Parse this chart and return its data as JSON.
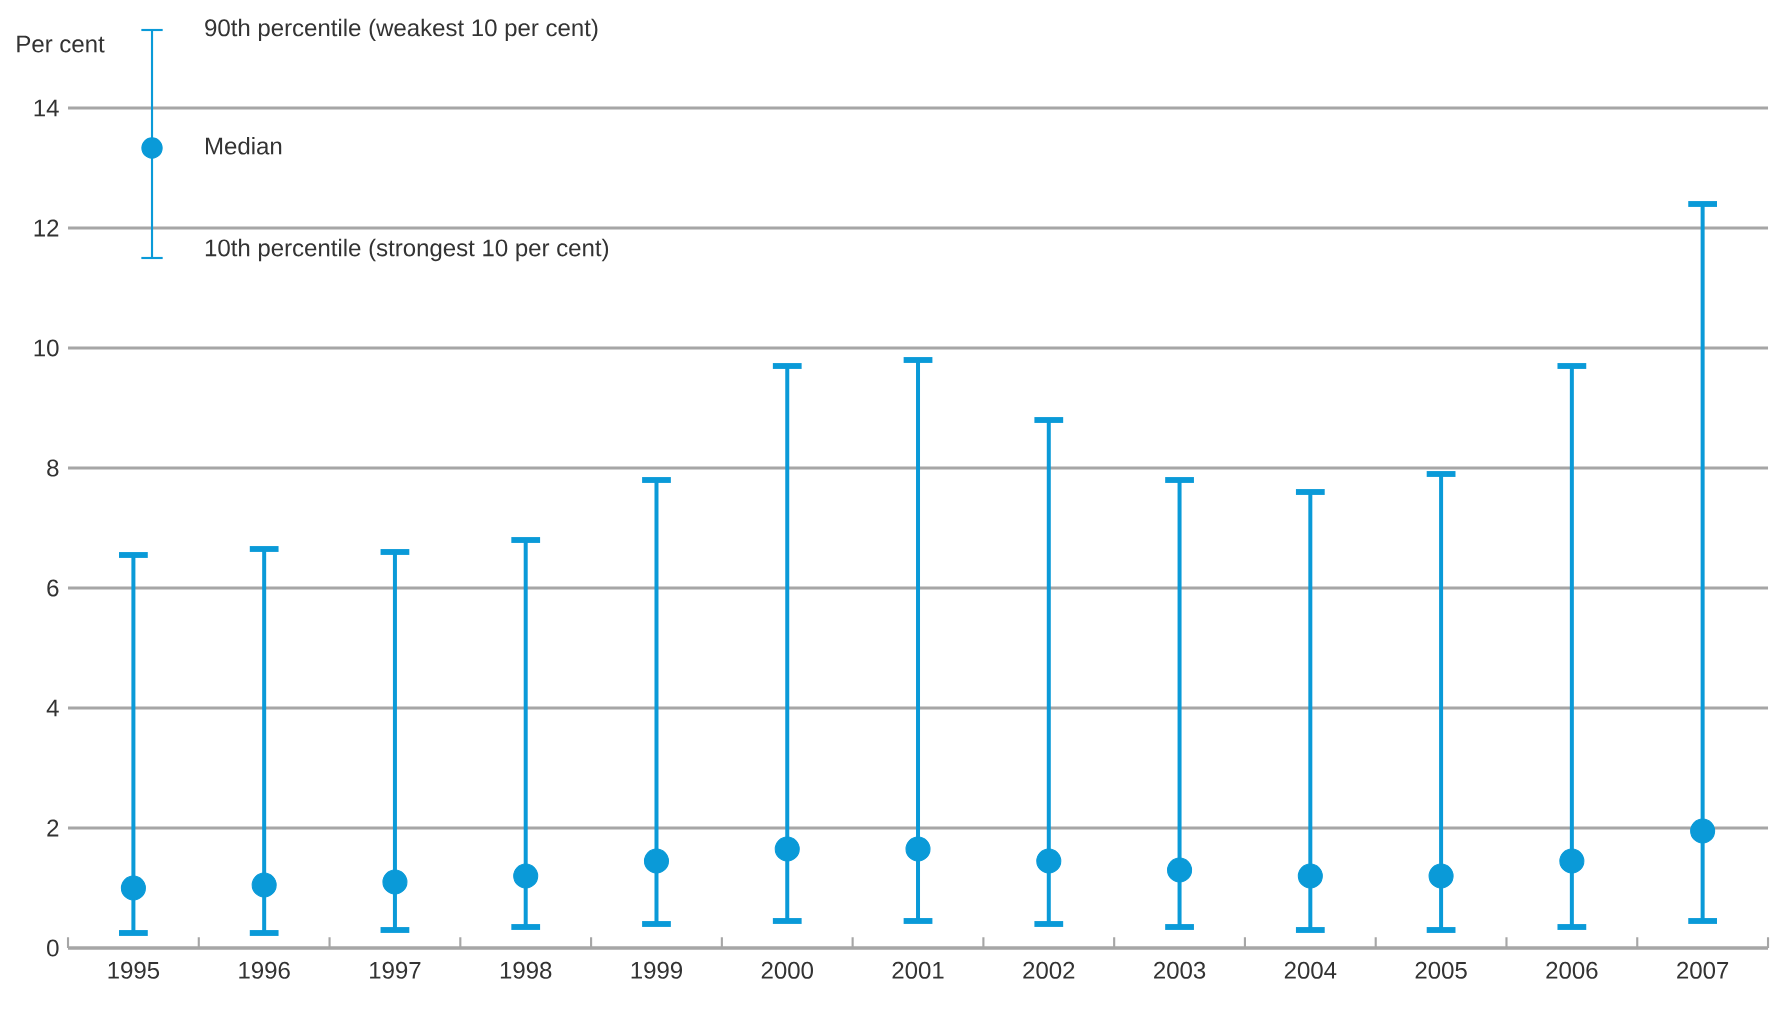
{
  "chart_data": {
    "type": "scatter",
    "ylabel": "Per cent",
    "categories": [
      "1995",
      "1996",
      "1997",
      "1998",
      "1999",
      "2000",
      "2001",
      "2002",
      "2003",
      "2004",
      "2005",
      "2006",
      "2007"
    ],
    "series": [
      {
        "color": "#0a9ad8",
        "values": [
          1.0,
          1.05,
          1.1,
          1.2,
          1.45,
          1.65,
          1.65,
          1.45,
          1.3,
          1.2,
          1.2,
          1.45,
          1.95
        ],
        "errors": [
          [
            0.25,
            6.55
          ],
          [
            0.25,
            6.65
          ],
          [
            0.3,
            6.6
          ],
          [
            0.35,
            6.8
          ],
          [
            0.4,
            7.8
          ],
          [
            0.45,
            9.7
          ],
          [
            0.45,
            9.8
          ],
          [
            0.4,
            8.8
          ],
          [
            0.35,
            7.8
          ],
          [
            0.3,
            7.6
          ],
          [
            0.3,
            7.9
          ],
          [
            0.35,
            9.7
          ],
          [
            0.45,
            12.4
          ]
        ]
      }
    ],
    "ylim": [
      0,
      14
    ],
    "yticks": [
      0,
      2,
      4,
      6,
      8,
      10,
      12,
      14
    ],
    "grid": "y",
    "marker": "circle",
    "annotations": [
      "90th percentile (weakest 10 per cent)",
      "Median",
      "10th percentile (strongest 10 per cent)"
    ]
  }
}
